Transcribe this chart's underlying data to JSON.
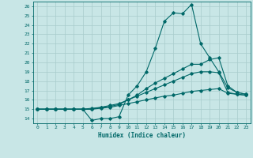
{
  "xlabel": "Humidex (Indice chaleur)",
  "ylabel": "",
  "xlim": [
    -0.5,
    23.5
  ],
  "ylim": [
    13.5,
    26.5
  ],
  "xticks": [
    0,
    1,
    2,
    3,
    4,
    5,
    6,
    7,
    8,
    9,
    10,
    11,
    12,
    13,
    14,
    15,
    16,
    17,
    18,
    19,
    20,
    21,
    22,
    23
  ],
  "yticks": [
    14,
    15,
    16,
    17,
    18,
    19,
    20,
    21,
    22,
    23,
    24,
    25,
    26
  ],
  "background_color": "#c8e6e6",
  "grid_color": "#a8cccc",
  "line_color": "#006868",
  "line1": [
    15,
    15,
    15,
    15,
    15,
    15,
    13.8,
    14.0,
    14.0,
    14.2,
    16.5,
    17.5,
    19.0,
    21.5,
    24.4,
    25.3,
    25.2,
    26.2,
    22.0,
    20.5,
    19.0,
    17.3,
    16.8,
    16.6
  ],
  "line2": [
    15,
    15,
    15,
    15,
    15,
    15,
    15.0,
    15.2,
    15.3,
    15.5,
    16.0,
    16.5,
    17.2,
    17.8,
    18.3,
    18.8,
    19.3,
    19.8,
    19.8,
    20.3,
    20.5,
    17.5,
    16.8,
    16.6
  ],
  "line3": [
    15,
    15,
    15,
    15,
    15,
    15,
    15.1,
    15.2,
    15.4,
    15.6,
    16.0,
    16.4,
    16.8,
    17.2,
    17.6,
    18.0,
    18.4,
    18.8,
    19.0,
    19.0,
    18.9,
    16.8,
    16.6,
    16.5
  ],
  "line4": [
    15,
    15,
    15,
    15,
    15,
    15,
    15.0,
    15.1,
    15.2,
    15.4,
    15.6,
    15.8,
    16.0,
    16.2,
    16.4,
    16.5,
    16.7,
    16.9,
    17.0,
    17.1,
    17.2,
    16.7,
    16.6,
    16.5
  ]
}
